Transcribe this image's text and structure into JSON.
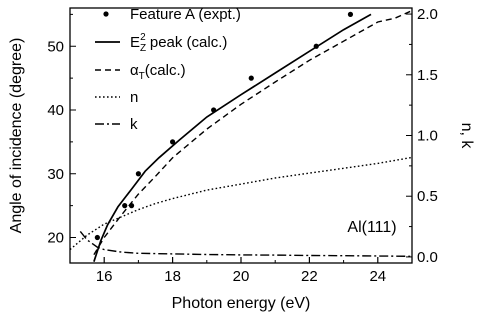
{
  "chart_data": {
    "type": "line",
    "xlabel": "Photon energy (eV)",
    "ylabel": "Angle of incidence (degree)",
    "y2label": "n, k",
    "xlim": [
      15,
      25
    ],
    "ylim": [
      16,
      56
    ],
    "y2lim": [
      -0.05,
      2.05
    ],
    "xticks": [
      "16",
      "18",
      "20",
      "22",
      "24"
    ],
    "yticks": [
      "20",
      "30",
      "40",
      "50"
    ],
    "y2ticks": [
      "0.0",
      "0.5",
      "1.0",
      "1.5",
      "2.0"
    ],
    "annotation": "Al(111)",
    "grid": false,
    "legend_position": "top-left",
    "legend": [
      {
        "name": "Feature A (expt.)",
        "style": "dots"
      },
      {
        "name_main": "E",
        "name_sub": "Z",
        "name_sup": "2",
        "name_rest": " peak (calc.)",
        "style": "solid"
      },
      {
        "name_main": "α",
        "name_sub": "T",
        "name_rest": "(calc.)",
        "style": "dashed"
      },
      {
        "name": "n",
        "style": "dotted"
      },
      {
        "name": "k",
        "style": "dashdot"
      }
    ],
    "series": [
      {
        "name": "Feature A (expt.)",
        "axis": "left",
        "style": "dots",
        "x": [
          15.8,
          16.6,
          16.8,
          17.0,
          18.0,
          19.2,
          20.3,
          22.2,
          23.2
        ],
        "y": [
          20,
          25,
          25,
          30,
          35,
          40,
          45,
          50,
          55
        ]
      },
      {
        "name": "E_Z^2 peak (calc.)",
        "axis": "left",
        "style": "solid",
        "x": [
          15.7,
          15.9,
          16.1,
          16.4,
          16.8,
          17.2,
          17.6,
          18.2,
          19.0,
          20.0,
          21.0,
          22.0,
          23.0,
          23.8
        ],
        "y": [
          16.2,
          19.5,
          22.0,
          24.8,
          27.6,
          30.4,
          32.5,
          35.3,
          38.9,
          42.4,
          45.8,
          49.2,
          52.6,
          55.0
        ]
      },
      {
        "name": "α_T (calc.)",
        "axis": "left",
        "style": "dashed",
        "x": [
          15.7,
          16.0,
          16.5,
          17.0,
          17.5,
          18.0,
          19.0,
          20.0,
          21.0,
          22.0,
          23.0,
          24.0,
          24.5,
          25.0
        ],
        "y": [
          17.3,
          20.0,
          23.5,
          26.8,
          29.6,
          32.5,
          37.0,
          40.9,
          44.4,
          47.8,
          50.8,
          53.8,
          54.4,
          55.6
        ]
      },
      {
        "name": "n",
        "axis": "right",
        "style": "dotted",
        "x": [
          15.0,
          15.5,
          16.0,
          16.5,
          17.0,
          17.5,
          18.0,
          19.0,
          20.0,
          21.0,
          22.0,
          23.0,
          24.0,
          25.0
        ],
        "y": [
          0.06,
          0.18,
          0.27,
          0.33,
          0.39,
          0.44,
          0.48,
          0.55,
          0.6,
          0.65,
          0.69,
          0.73,
          0.77,
          0.82
        ]
      },
      {
        "name": "k",
        "axis": "right",
        "style": "dashdot",
        "x": [
          15.3,
          15.5,
          15.8,
          16.0,
          16.5,
          17.0,
          18.0,
          19.0,
          20.0,
          21.0,
          22.0,
          23.0,
          24.0,
          25.0
        ],
        "y": [
          0.21,
          0.14,
          0.08,
          0.06,
          0.04,
          0.03,
          0.025,
          0.02,
          0.017,
          0.015,
          0.012,
          0.01,
          0.008,
          0.005
        ]
      }
    ]
  }
}
